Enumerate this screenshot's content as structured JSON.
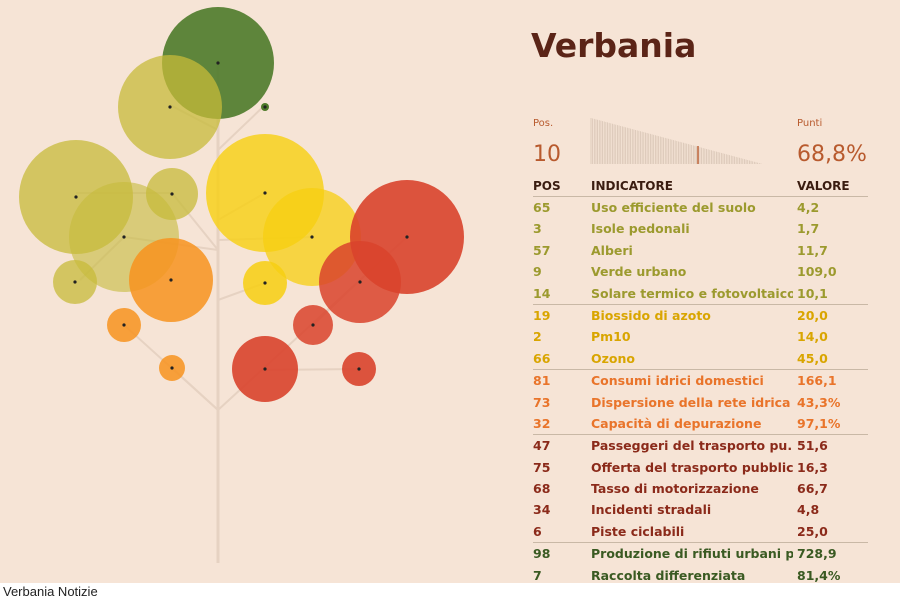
{
  "title": "Verbania",
  "caption": "Verbania Notizie",
  "summary": {
    "pos_label": "Pos.",
    "pos_value": "10",
    "points_label": "Punti",
    "points_value": "68,8%",
    "rank_position": 10
  },
  "headers": {
    "pos": "POS",
    "indicator": "INDICATORE",
    "value": "VALORE"
  },
  "colors": {
    "olive": "#9c9a2e",
    "yellow": "#d9a500",
    "orange": "#e9742a",
    "red": "#c8452f",
    "darkred": "#8b2a1a",
    "green": "#3a5a22",
    "trunk": "#e6d2c2"
  },
  "chart_data": {
    "type": "table",
    "columns": [
      "POS",
      "INDICATORE",
      "VALORE"
    ],
    "rows": [
      {
        "pos": "65",
        "indicator": "Uso efficiente del suolo",
        "value": "4,2",
        "group": "olive"
      },
      {
        "pos": "3",
        "indicator": "Isole pedonali",
        "value": "1,7",
        "group": "olive"
      },
      {
        "pos": "57",
        "indicator": "Alberi",
        "value": "11,7",
        "group": "olive"
      },
      {
        "pos": "9",
        "indicator": "Verde urbano",
        "value": "109,0",
        "group": "olive"
      },
      {
        "pos": "14",
        "indicator": "Solare termico e fotovoltaico",
        "value": "10,1",
        "group": "olive"
      },
      {
        "pos": "19",
        "indicator": "Biossido di azoto",
        "value": "20,0",
        "group": "yellow"
      },
      {
        "pos": "2",
        "indicator": "Pm10",
        "value": "14,0",
        "group": "yellow"
      },
      {
        "pos": "66",
        "indicator": "Ozono",
        "value": "45,0",
        "group": "yellow"
      },
      {
        "pos": "81",
        "indicator": "Consumi idrici domestici",
        "value": "166,1",
        "group": "orange"
      },
      {
        "pos": "73",
        "indicator": "Dispersione della rete idrica",
        "value": "43,3%",
        "group": "orange"
      },
      {
        "pos": "32",
        "indicator": "Capacità di depurazione",
        "value": "97,1%",
        "group": "orange"
      },
      {
        "pos": "47",
        "indicator": "Passeggeri del trasporto pu...",
        "value": "51,6",
        "group": "darkred"
      },
      {
        "pos": "75",
        "indicator": "Offerta del trasporto pubblico",
        "value": "16,3",
        "group": "darkred"
      },
      {
        "pos": "68",
        "indicator": "Tasso di motorizzazione",
        "value": "66,7",
        "group": "darkred"
      },
      {
        "pos": "34",
        "indicator": "Incidenti stradali",
        "value": "4,8",
        "group": "darkred"
      },
      {
        "pos": "6",
        "indicator": "Piste ciclabili",
        "value": "25,0",
        "group": "darkred"
      },
      {
        "pos": "98",
        "indicator": "Produzione di rifiuti urbani p...",
        "value": "728,9",
        "group": "green"
      },
      {
        "pos": "7",
        "indicator": "Raccolta differenziata",
        "value": "81,4%",
        "group": "green"
      }
    ]
  }
}
